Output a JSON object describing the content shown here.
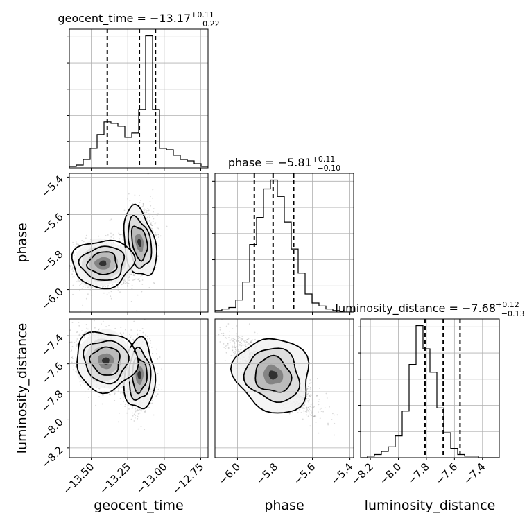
{
  "chart_data": {
    "type": "corner",
    "parameters": [
      "geocent_time",
      "phase",
      "luminosity_distance"
    ],
    "axis_labels": {
      "x": [
        "geocent_time",
        "phase",
        "luminosity_distance"
      ],
      "y": [
        "phase",
        "luminosity_distance"
      ]
    },
    "ranges": {
      "geocent_time": [
        -13.65,
        -12.7
      ],
      "phase": [
        -6.12,
        -5.38
      ],
      "luminosity_distance": [
        -8.27,
        -7.28
      ]
    },
    "ticks": {
      "geocent_time": [
        -13.5,
        -13.25,
        -13.0,
        -12.75
      ],
      "phase": [
        -6.0,
        -5.8,
        -5.6,
        -5.4
      ],
      "luminosity_distance": [
        -8.2,
        -8.0,
        -7.8,
        -7.6,
        -7.4
      ]
    },
    "tick_labels": {
      "geocent_time": [
        "−13.50",
        "−13.25",
        "−13.00",
        "−12.75"
      ],
      "phase": [
        "−6.0",
        "−5.8",
        "−5.6",
        "−5.4"
      ],
      "luminosity_distance": [
        "−8.2",
        "−8.0",
        "−7.8",
        "−7.6",
        "−7.4"
      ]
    },
    "titles": [
      {
        "param": "geocent_time",
        "main": "geocent_time = −13.17",
        "sup": "+0.11",
        "sub": "−0.22"
      },
      {
        "param": "phase",
        "main": "phase = −5.81",
        "sup": "+0.11",
        "sub": "−0.10"
      },
      {
        "param": "luminosity_distance",
        "main": "luminosity_distance = −7.68",
        "sup": "+0.12",
        "sub": "−0.13"
      }
    ],
    "quantiles": {
      "geocent_time": [
        -13.39,
        -13.17,
        -13.06
      ],
      "phase": [
        -5.91,
        -5.81,
        -5.7
      ],
      "luminosity_distance": [
        -7.81,
        -7.68,
        -7.56
      ]
    },
    "histograms": {
      "geocent_time": {
        "start": -13.65,
        "width": 0.0475,
        "counts": [
          1,
          2,
          6,
          14,
          24,
          33,
          32,
          30,
          22,
          25,
          42,
          95,
          42,
          14,
          13,
          9,
          6,
          5,
          3,
          1
        ]
      },
      "phase": {
        "start": -6.12,
        "width": 0.037,
        "counts": [
          1,
          2,
          3,
          8,
          20,
          45,
          63,
          82,
          88,
          77,
          60,
          42,
          26,
          12,
          6,
          4,
          2,
          1,
          0,
          0
        ]
      },
      "luminosity_distance": {
        "start": -8.27,
        "width": 0.0495,
        "counts": [
          0,
          1,
          2,
          4,
          7,
          14,
          30,
          60,
          85,
          70,
          55,
          32,
          16,
          6,
          2,
          1,
          1,
          0,
          0,
          0
        ]
      }
    },
    "grid": true,
    "scatter": "gray-points-with-density-contours"
  }
}
